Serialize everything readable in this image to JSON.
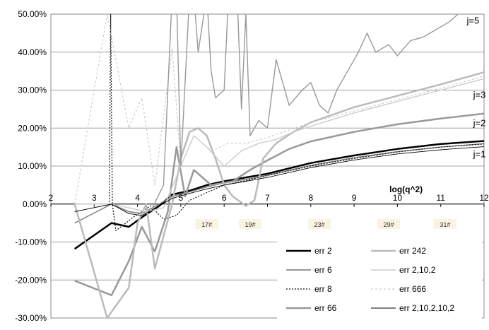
{
  "chart_data": {
    "type": "line",
    "title": "",
    "xlabel": "log(q^2)",
    "ylabel": "",
    "xlim": [
      2,
      12
    ],
    "ylim": [
      -30,
      50
    ],
    "x_ticks": [
      "2",
      "3",
      "4",
      "5",
      "6",
      "7",
      "8",
      "9",
      "10",
      "11",
      "12"
    ],
    "y_ticks": [
      "-30.00%",
      "-20.00%",
      "-10.00%",
      "0.00%",
      "10.00%",
      "20.00%",
      "30.00%",
      "40.00%",
      "50.00%"
    ],
    "grid": "horizontal",
    "legend_position": "bottom-right",
    "annotations": [
      {
        "text": "j=5",
        "x": 11.6,
        "y": 47.5
      },
      {
        "text": "j=3",
        "x": 11.75,
        "y": 28
      },
      {
        "text": "j=2",
        "x": 11.75,
        "y": 20.5
      },
      {
        "text": "j=1",
        "x": 11.75,
        "y": 12.3
      }
    ],
    "x_badges": [
      {
        "text": "17#",
        "x": 5.6
      },
      {
        "text": "19#",
        "x": 6.6
      },
      {
        "text": "23#",
        "x": 8.2
      },
      {
        "text": "29#",
        "x": 9.8
      },
      {
        "text": "31#",
        "x": 11.1
      }
    ],
    "series": [
      {
        "name": "err 2",
        "color": "#000000",
        "width": 2.5,
        "dash": "",
        "points": [
          [
            2.55,
            -11.8
          ],
          [
            3.4,
            -5
          ],
          [
            3.8,
            -6
          ],
          [
            4.1,
            -3.5
          ],
          [
            4.5,
            -0.5
          ],
          [
            4.8,
            2.5
          ],
          [
            5.2,
            3.5
          ],
          [
            5.6,
            5
          ],
          [
            6,
            6
          ],
          [
            6.5,
            7
          ],
          [
            7,
            8
          ],
          [
            8,
            10.8
          ],
          [
            9,
            12.8
          ],
          [
            10,
            14.5
          ],
          [
            11,
            15.8
          ],
          [
            12,
            16.6
          ]
        ]
      },
      {
        "name": "err 6",
        "color": "#777777",
        "width": 1.4,
        "dash": "",
        "points": [
          [
            2.55,
            -5
          ],
          [
            3.4,
            0
          ],
          [
            3.8,
            -2
          ],
          [
            4.1,
            -2.5
          ],
          [
            4.5,
            0
          ],
          [
            4.8,
            2
          ],
          [
            5.2,
            3.2
          ],
          [
            5.6,
            4.5
          ],
          [
            6,
            5.6
          ],
          [
            6.5,
            6.5
          ],
          [
            7,
            7.6
          ],
          [
            8,
            10.2
          ],
          [
            9,
            12.2
          ],
          [
            10,
            13.8
          ],
          [
            11,
            15
          ],
          [
            12,
            15.9
          ]
        ]
      },
      {
        "name": "err 8",
        "color": "#111111",
        "width": 1.2,
        "dash": "2,2",
        "points": [
          [
            2.55,
            0
          ],
          [
            3.35,
            0
          ],
          [
            3.38,
            50
          ],
          [
            3.42,
            0
          ],
          [
            3.5,
            -7
          ],
          [
            3.9,
            -3.5
          ],
          [
            4.3,
            -0.5
          ],
          [
            4.6,
            -4
          ],
          [
            4.9,
            -3
          ],
          [
            5.2,
            1
          ],
          [
            5.6,
            3
          ],
          [
            6,
            5
          ],
          [
            6.5,
            6.2
          ],
          [
            7,
            7.5
          ],
          [
            8,
            10
          ],
          [
            9,
            12
          ],
          [
            10,
            13.7
          ],
          [
            11,
            15
          ],
          [
            12,
            15.8
          ]
        ]
      },
      {
        "name": "err 66",
        "color": "#999999",
        "width": 2.5,
        "dash": "",
        "points": [
          [
            2.55,
            -20.2
          ],
          [
            3.4,
            -24
          ],
          [
            3.8,
            -15
          ],
          [
            4.1,
            -6
          ],
          [
            4.4,
            -12.5
          ],
          [
            4.7,
            -2
          ],
          [
            4.9,
            15
          ],
          [
            5.1,
            2
          ],
          [
            5.3,
            9
          ],
          [
            5.7,
            5
          ],
          [
            6.2,
            6
          ],
          [
            6.6,
            9
          ],
          [
            7,
            11.5
          ],
          [
            7.5,
            14.5
          ],
          [
            8,
            16.5
          ],
          [
            9,
            19
          ],
          [
            10,
            21
          ],
          [
            11,
            22.5
          ],
          [
            12,
            23.8
          ]
        ]
      },
      {
        "name": "err 242",
        "color": "#bbbbbb",
        "width": 2.5,
        "dash": "",
        "points": [
          [
            2.55,
            0
          ],
          [
            3.3,
            -30
          ],
          [
            3.8,
            -22
          ],
          [
            4,
            -5
          ],
          [
            4.2,
            0
          ],
          [
            4.4,
            -17
          ],
          [
            4.8,
            0
          ],
          [
            5.0,
            12
          ],
          [
            5.2,
            19
          ],
          [
            5.4,
            20
          ],
          [
            5.6,
            18
          ],
          [
            5.8,
            12
          ],
          [
            6.0,
            5
          ],
          [
            6.2,
            2
          ],
          [
            6.5,
            -0.5
          ],
          [
            6.7,
            1
          ],
          [
            6.9,
            12
          ],
          [
            7.2,
            16
          ],
          [
            7.6,
            19
          ],
          [
            8,
            21.5
          ],
          [
            8.5,
            23.5
          ],
          [
            9,
            25.5
          ],
          [
            10,
            28.5
          ],
          [
            11,
            31.5
          ],
          [
            12,
            34.7
          ]
        ]
      },
      {
        "name": "err 2,10,2",
        "color": "#cccccc",
        "width": 1.4,
        "dash": "",
        "points": [
          [
            2.55,
            0
          ],
          [
            3.4,
            0
          ],
          [
            3.8,
            -1
          ],
          [
            4.2,
            -2
          ],
          [
            4.6,
            -1
          ],
          [
            5.0,
            10
          ],
          [
            5.3,
            18
          ],
          [
            5.6,
            15
          ],
          [
            6.0,
            10
          ],
          [
            6.4,
            14
          ],
          [
            6.8,
            16
          ],
          [
            7.2,
            17
          ],
          [
            7.6,
            19
          ],
          [
            8,
            20.5
          ],
          [
            9,
            24
          ],
          [
            10,
            27
          ],
          [
            11,
            30
          ],
          [
            12,
            33
          ]
        ]
      },
      {
        "name": "err 666",
        "color": "#cccccc",
        "width": 1.2,
        "dash": "3,3",
        "points": [
          [
            2.55,
            0
          ],
          [
            3.3,
            50
          ],
          [
            3.8,
            20
          ],
          [
            4.1,
            28
          ],
          [
            4.4,
            5
          ],
          [
            4.8,
            41
          ],
          [
            5.0,
            10
          ],
          [
            5.3,
            18
          ],
          [
            5.7,
            14
          ],
          [
            6.1,
            16
          ],
          [
            6.5,
            16
          ],
          [
            7,
            17.5
          ],
          [
            7.5,
            19.5
          ],
          [
            8,
            21.5
          ],
          [
            9,
            24.5
          ],
          [
            10,
            27.5
          ],
          [
            11,
            30.5
          ],
          [
            12,
            33.7
          ]
        ]
      },
      {
        "name": "err 2,10,2,10,2",
        "color": "#000000",
        "width": 0.9,
        "dash": "",
        "points": [
          [
            2.55,
            -2
          ],
          [
            3.4,
            0
          ],
          [
            3.8,
            -2.5
          ],
          [
            4.1,
            -3
          ],
          [
            4.5,
            -0.5
          ],
          [
            4.8,
            1.5
          ],
          [
            5.2,
            2.8
          ],
          [
            5.6,
            4
          ],
          [
            6,
            5
          ],
          [
            6.5,
            6
          ],
          [
            7,
            7
          ],
          [
            8,
            9.6
          ],
          [
            9,
            11.6
          ],
          [
            10,
            13.2
          ],
          [
            11,
            14.3
          ],
          [
            12,
            15.1
          ]
        ]
      },
      {
        "name": "",
        "color": "#999999",
        "width": 1.4,
        "dash": "",
        "points": [
          [
            4.3,
            -2
          ],
          [
            4.6,
            5
          ],
          [
            4.8,
            55
          ],
          [
            4.9,
            55
          ],
          [
            5.0,
            10
          ],
          [
            5.2,
            55
          ],
          [
            5.3,
            55
          ],
          [
            5.4,
            40
          ],
          [
            5.6,
            55
          ],
          [
            5.7,
            35
          ],
          [
            5.8,
            28
          ],
          [
            6.0,
            30
          ],
          [
            6.1,
            55
          ],
          [
            6.3,
            55
          ],
          [
            6.4,
            25
          ],
          [
            6.5,
            50
          ],
          [
            6.6,
            18
          ],
          [
            6.8,
            22
          ],
          [
            7.0,
            20
          ],
          [
            7.2,
            38
          ],
          [
            7.5,
            26
          ],
          [
            7.8,
            30
          ],
          [
            8.0,
            32
          ],
          [
            8.2,
            26
          ],
          [
            8.4,
            24
          ],
          [
            8.6,
            30
          ],
          [
            8.9,
            36
          ],
          [
            9.1,
            40
          ],
          [
            9.3,
            45
          ],
          [
            9.5,
            40
          ],
          [
            9.8,
            42
          ],
          [
            10.0,
            39
          ],
          [
            10.3,
            43
          ],
          [
            10.6,
            44
          ],
          [
            10.9,
            46
          ],
          [
            11.2,
            48
          ],
          [
            11.4,
            50
          ]
        ]
      }
    ]
  }
}
